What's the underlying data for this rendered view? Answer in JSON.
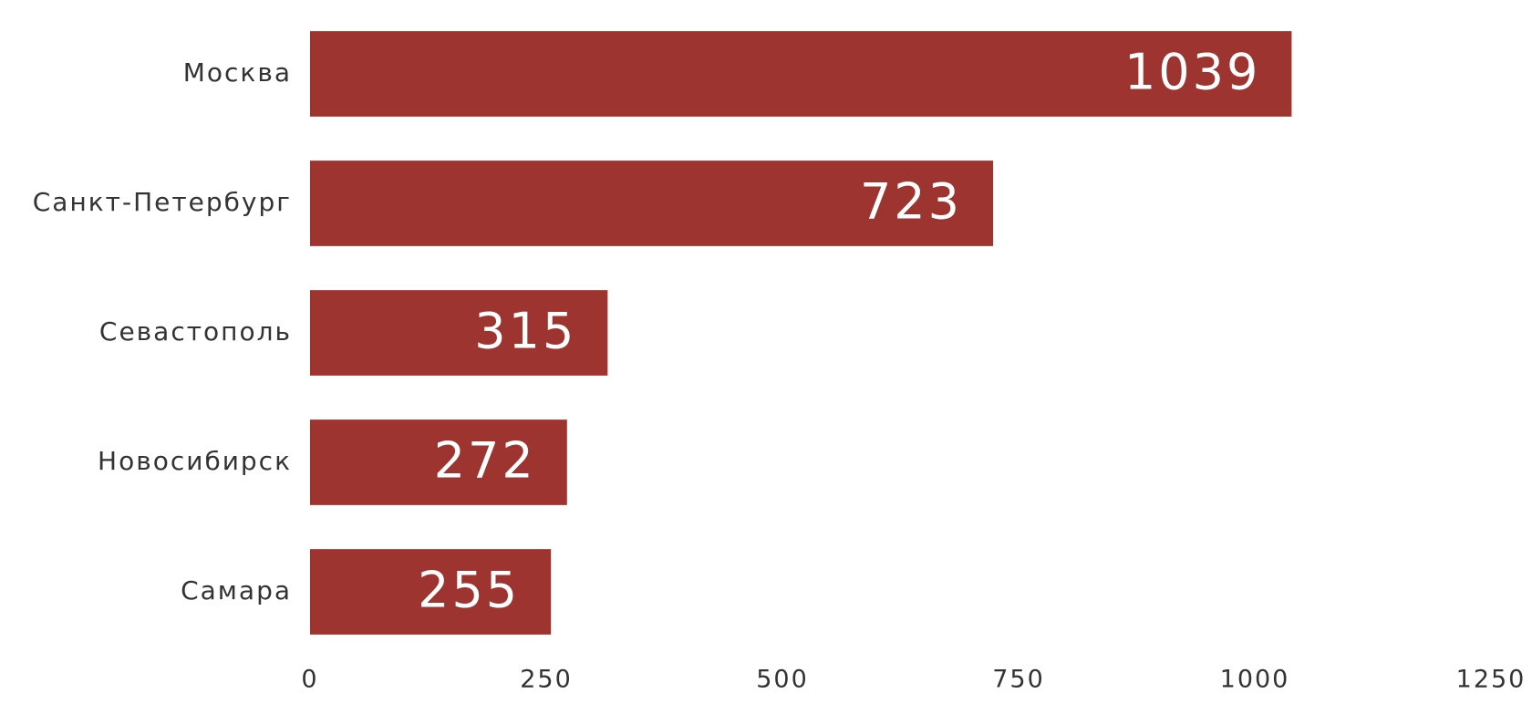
{
  "chart_data": {
    "type": "bar",
    "orientation": "horizontal",
    "categories": [
      "Москва",
      "Санкт-Петербург",
      "Севастополь",
      "Новосибирск",
      "Самара"
    ],
    "values": [
      1039,
      723,
      315,
      272,
      255
    ],
    "color": "#9e3430",
    "xlim": [
      0,
      1250
    ],
    "xticks": [
      0,
      250,
      500,
      750,
      1000,
      1250
    ],
    "grid": false
  }
}
